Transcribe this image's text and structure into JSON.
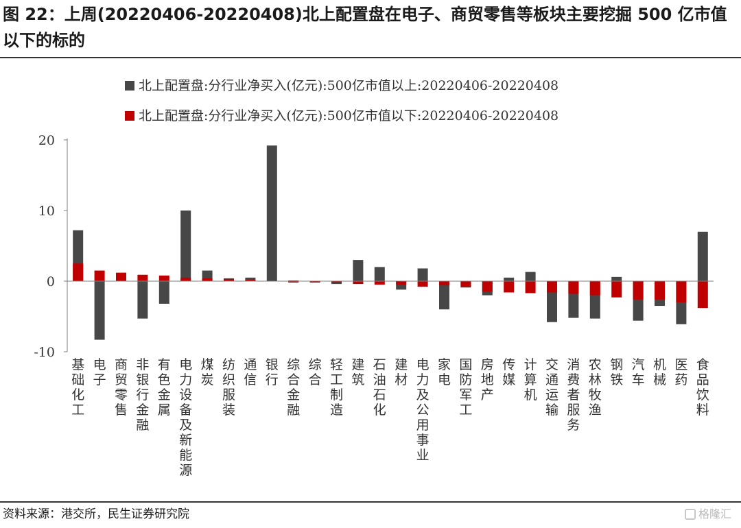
{
  "header": {
    "title": "图 22：上周(20220406-20220408)北上配置盘在电子、商贸零售等板块主要挖掘 500 亿市值以下的标的"
  },
  "footer": {
    "source": "资料来源：港交所，民生证券研究院",
    "watermark": "格隆汇"
  },
  "chart_data": {
    "type": "bar",
    "stacked": false,
    "categories": [
      "基础化工",
      "电子",
      "商贸零售",
      "非银行金融",
      "有色金属",
      "电力设备及新能源",
      "煤炭",
      "纺织服装",
      "通信",
      "银行",
      "综合金融",
      "综合",
      "轻工制造",
      "建筑",
      "石油石化",
      "建材",
      "电力及公用事业",
      "家电",
      "国防军工",
      "房地产",
      "传媒",
      "计算机",
      "交通运输",
      "消费者服务",
      "农林牧渔",
      "钢铁",
      "汽车",
      "机械",
      "医药",
      "食品饮料"
    ],
    "series": [
      {
        "name": "北上配置盘:分行业净买入(亿元):500亿市值以上:20220406-20220408",
        "color": "#474747",
        "values": [
          7.2,
          -8.3,
          0.5,
          -5.3,
          -3.2,
          10.0,
          1.5,
          0.4,
          0.5,
          19.2,
          0.1,
          0.0,
          -0.4,
          3.0,
          2.0,
          -1.2,
          1.8,
          -4.0,
          -0.9,
          -2.0,
          0.5,
          1.3,
          -5.8,
          -5.2,
          -5.3,
          0.6,
          -5.6,
          -3.5,
          -6.1,
          7.0
        ]
      },
      {
        "name": "北上配置盘:分行业净买入(亿元):500亿市值以下:20220406-20220408",
        "color": "#c00000",
        "values": [
          2.5,
          1.5,
          1.2,
          0.9,
          0.8,
          0.5,
          0.4,
          0.3,
          0.2,
          0.1,
          -0.2,
          -0.2,
          -0.2,
          -0.4,
          -0.5,
          -0.5,
          -0.8,
          -0.6,
          -0.8,
          -1.5,
          -1.6,
          -1.7,
          -1.6,
          -1.8,
          -2.0,
          -2.3,
          -2.6,
          -2.6,
          -3.0,
          -3.8
        ]
      }
    ],
    "yticks": [
      20,
      10,
      0,
      -10
    ],
    "ylim": [
      -10,
      20
    ],
    "xlabel": "",
    "ylabel": "",
    "grid": false,
    "legend_position": "top-center"
  }
}
